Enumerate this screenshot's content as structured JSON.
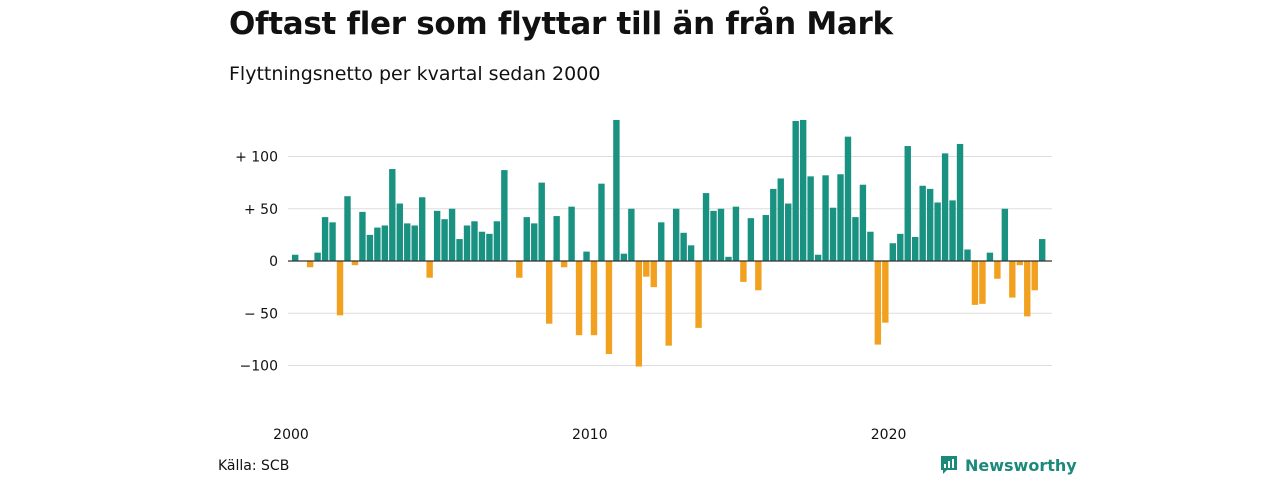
{
  "title": "Oftast fler som flyttar till än från Mark",
  "subtitle": "Flyttningsnetto per kvartal sedan 2000",
  "source": "Källa: SCB",
  "brand": {
    "name": "Newsworthy",
    "logo_icon": "newsworthy-logo-icon",
    "color": "#1b8a7b"
  },
  "colors": {
    "positive": "#1a9282",
    "negative": "#f2a01f",
    "grid": "#dddddd",
    "zero_line": "#333333"
  },
  "chart_data": {
    "type": "bar",
    "title": "Oftast fler som flyttar till än från Mark",
    "subtitle": "Flyttningsnetto per kvartal sedan 2000",
    "xlabel": "",
    "ylabel": "",
    "ylim": [
      -120,
      135
    ],
    "grid": true,
    "y_ticks": [
      {
        "value": 100,
        "label": "+ 100"
      },
      {
        "value": 50,
        "label": "+  50"
      },
      {
        "value": 0,
        "label": "0"
      },
      {
        "value": -50,
        "label": "− 50"
      },
      {
        "value": -100,
        "label": "−100"
      }
    ],
    "x_ticks": [
      {
        "value": 2000,
        "label": "2000"
      },
      {
        "value": 2010,
        "label": "2010"
      },
      {
        "value": 2020,
        "label": "2020"
      }
    ],
    "categories": [
      "2000K1",
      "2000K2",
      "2000K3",
      "2000K4",
      "2001K1",
      "2001K2",
      "2001K3",
      "2001K4",
      "2002K1",
      "2002K2",
      "2002K3",
      "2002K4",
      "2003K1",
      "2003K2",
      "2003K3",
      "2003K4",
      "2004K1",
      "2004K2",
      "2004K3",
      "2004K4",
      "2005K1",
      "2005K2",
      "2005K3",
      "2005K4",
      "2006K1",
      "2006K2",
      "2006K3",
      "2006K4",
      "2007K1",
      "2007K2",
      "2007K3",
      "2007K4",
      "2008K1",
      "2008K2",
      "2008K3",
      "2008K4",
      "2009K1",
      "2009K2",
      "2009K3",
      "2009K4",
      "2010K1",
      "2010K2",
      "2010K3",
      "2010K4",
      "2011K1",
      "2011K2",
      "2011K3",
      "2011K4",
      "2012K1",
      "2012K2",
      "2012K3",
      "2012K4",
      "2013K1",
      "2013K2",
      "2013K3",
      "2013K4",
      "2014K1",
      "2014K2",
      "2014K3",
      "2014K4",
      "2015K1",
      "2015K2",
      "2015K3",
      "2015K4",
      "2016K1",
      "2016K2",
      "2016K3",
      "2016K4",
      "2017K1",
      "2017K2",
      "2017K3",
      "2017K4",
      "2018K1",
      "2018K2",
      "2018K3",
      "2018K4",
      "2019K1",
      "2019K2",
      "2019K3",
      "2019K4",
      "2020K1",
      "2020K2",
      "2020K3",
      "2020K4",
      "2021K1",
      "2021K2",
      "2021K3",
      "2021K4",
      "2022K1",
      "2022K2",
      "2022K3",
      "2022K4",
      "2023K1",
      "2023K2",
      "2023K3",
      "2023K4",
      "2024K1",
      "2024K2",
      "2024K3",
      "2024K4",
      "2025K1"
    ],
    "values": [
      6,
      0,
      -6,
      8,
      42,
      37,
      -52,
      62,
      -4,
      47,
      25,
      32,
      34,
      88,
      55,
      36,
      34,
      61,
      -16,
      48,
      40,
      50,
      21,
      34,
      38,
      28,
      26,
      38,
      87,
      0,
      -16,
      42,
      36,
      75,
      -60,
      43,
      -6,
      52,
      -71,
      9,
      -71,
      74,
      -89,
      135,
      7,
      50,
      -101,
      -15,
      -25,
      37,
      -81,
      50,
      27,
      15,
      -64,
      65,
      48,
      50,
      4,
      52,
      -20,
      41,
      -28,
      44,
      69,
      79,
      55,
      134,
      135,
      81,
      6,
      82,
      51,
      83,
      119,
      42,
      73,
      28,
      -80,
      -59,
      17,
      26,
      110,
      23,
      72,
      69,
      56,
      103,
      58,
      112,
      11,
      -42,
      -41,
      8,
      -17,
      50,
      -35,
      -4,
      -53,
      -28,
      21
    ]
  }
}
